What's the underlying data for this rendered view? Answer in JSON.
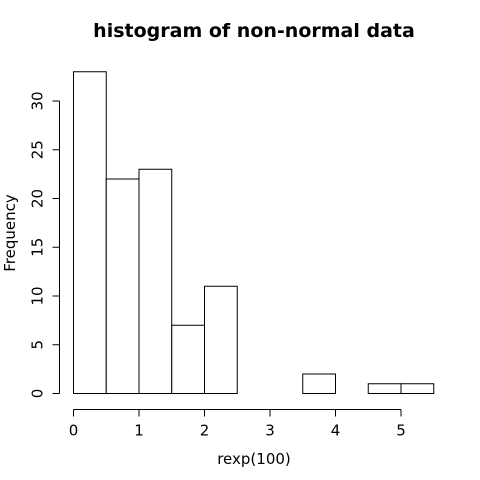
{
  "chart_data": {
    "type": "bar",
    "title": "histogram of non-normal data",
    "xlabel": "rexp(100)",
    "ylabel": "Frequency",
    "bins": [
      {
        "from": 0.0,
        "to": 0.5,
        "count": 33
      },
      {
        "from": 0.5,
        "to": 1.0,
        "count": 22
      },
      {
        "from": 1.0,
        "to": 1.5,
        "count": 23
      },
      {
        "from": 1.5,
        "to": 2.0,
        "count": 7
      },
      {
        "from": 2.0,
        "to": 2.5,
        "count": 11
      },
      {
        "from": 2.5,
        "to": 3.0,
        "count": 0
      },
      {
        "from": 3.0,
        "to": 3.5,
        "count": 0
      },
      {
        "from": 3.5,
        "to": 4.0,
        "count": 2
      },
      {
        "from": 4.0,
        "to": 4.5,
        "count": 0
      },
      {
        "from": 4.5,
        "to": 5.0,
        "count": 1
      },
      {
        "from": 5.0,
        "to": 5.5,
        "count": 1
      }
    ],
    "x_ticks": [
      "0",
      "1",
      "2",
      "3",
      "4",
      "5"
    ],
    "y_ticks": [
      "0",
      "5",
      "10",
      "15",
      "20",
      "25",
      "30"
    ],
    "xlim": [
      0,
      5.5
    ],
    "ylim": [
      0,
      33
    ],
    "grid": false,
    "legend": "none",
    "colors": {
      "bar_fill": "#ffffff",
      "bar_stroke": "#000000"
    }
  }
}
